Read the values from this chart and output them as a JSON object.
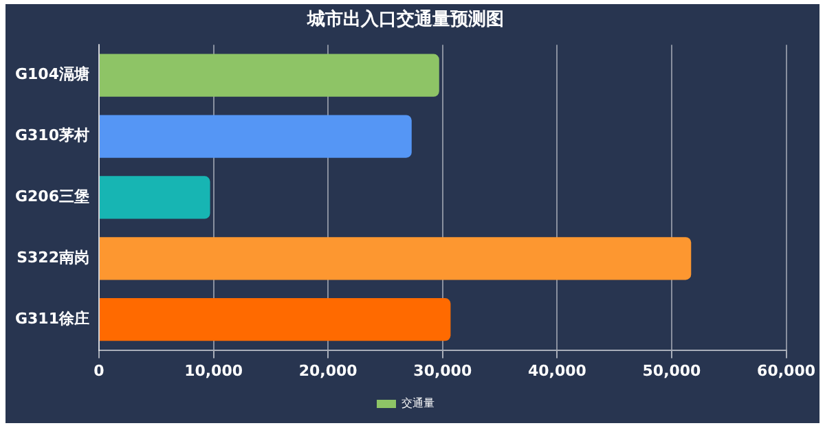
{
  "chart_data": {
    "type": "bar",
    "orientation": "horizontal",
    "title": "城市出入口交通量预测图",
    "categories": [
      "G104滆塘",
      "G310茅村",
      "G206三堡",
      "S322南岗",
      "G311徐庄"
    ],
    "series": [
      {
        "name": "交通量",
        "color": "#8ec466",
        "colors": [
          "#8ec466",
          "#5596f5",
          "#17b5b3",
          "#fd9730",
          "#ff6a00"
        ],
        "values": [
          29700,
          27300,
          9700,
          51700,
          30700
        ]
      }
    ],
    "xlim": [
      0,
      60000
    ],
    "xticks": [
      {
        "value": 0,
        "label": "0"
      },
      {
        "value": 10000,
        "label": "10,000"
      },
      {
        "value": 20000,
        "label": "20,000"
      },
      {
        "value": 30000,
        "label": "30,000"
      },
      {
        "value": 40000,
        "label": "40,000"
      },
      {
        "value": 50000,
        "label": "50,000"
      },
      {
        "value": 60000,
        "label": "60,000"
      }
    ],
    "grid": "x",
    "legend": "bottom"
  }
}
